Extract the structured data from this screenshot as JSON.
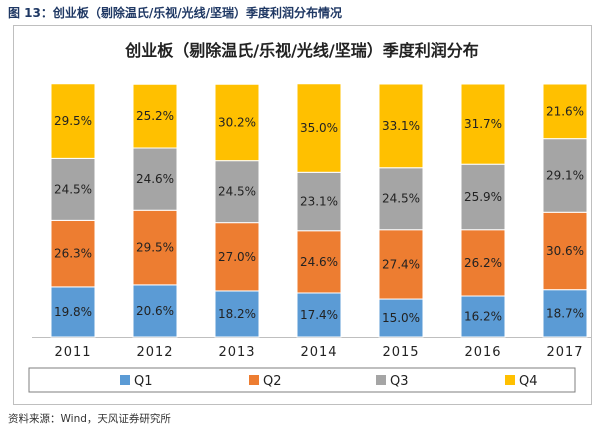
{
  "figure_caption": "图 13：创业板（剔除温氏/乐视/光线/坚瑞）季度利润分布情况",
  "source_note": "资料来源：Wind，天风证券研究所",
  "colors": {
    "Q1": "#5b9bd5",
    "Q2": "#ed7d31",
    "Q3": "#a5a5a5",
    "Q4": "#ffc000",
    "caption": "#1f3864"
  },
  "chart_data": {
    "type": "bar",
    "stacked": true,
    "percent": true,
    "title": "创业板（剔除温氏/乐视/光线/坚瑞）季度利润分布",
    "xlabel": "",
    "ylabel": "",
    "ylim": [
      0,
      100
    ],
    "grid": false,
    "legend_position": "bottom",
    "categories": [
      "2011",
      "2012",
      "2013",
      "2014",
      "2015",
      "2016",
      "2017"
    ],
    "series": [
      {
        "name": "Q1",
        "values": [
          19.8,
          20.6,
          18.2,
          17.4,
          15.0,
          16.2,
          18.7
        ]
      },
      {
        "name": "Q2",
        "values": [
          26.3,
          29.5,
          27.0,
          24.6,
          27.4,
          26.2,
          30.6
        ]
      },
      {
        "name": "Q3",
        "values": [
          24.5,
          24.6,
          24.5,
          23.1,
          24.5,
          25.9,
          29.1
        ]
      },
      {
        "name": "Q4",
        "values": [
          29.5,
          25.2,
          30.2,
          35.0,
          33.1,
          31.7,
          21.6
        ]
      }
    ]
  }
}
